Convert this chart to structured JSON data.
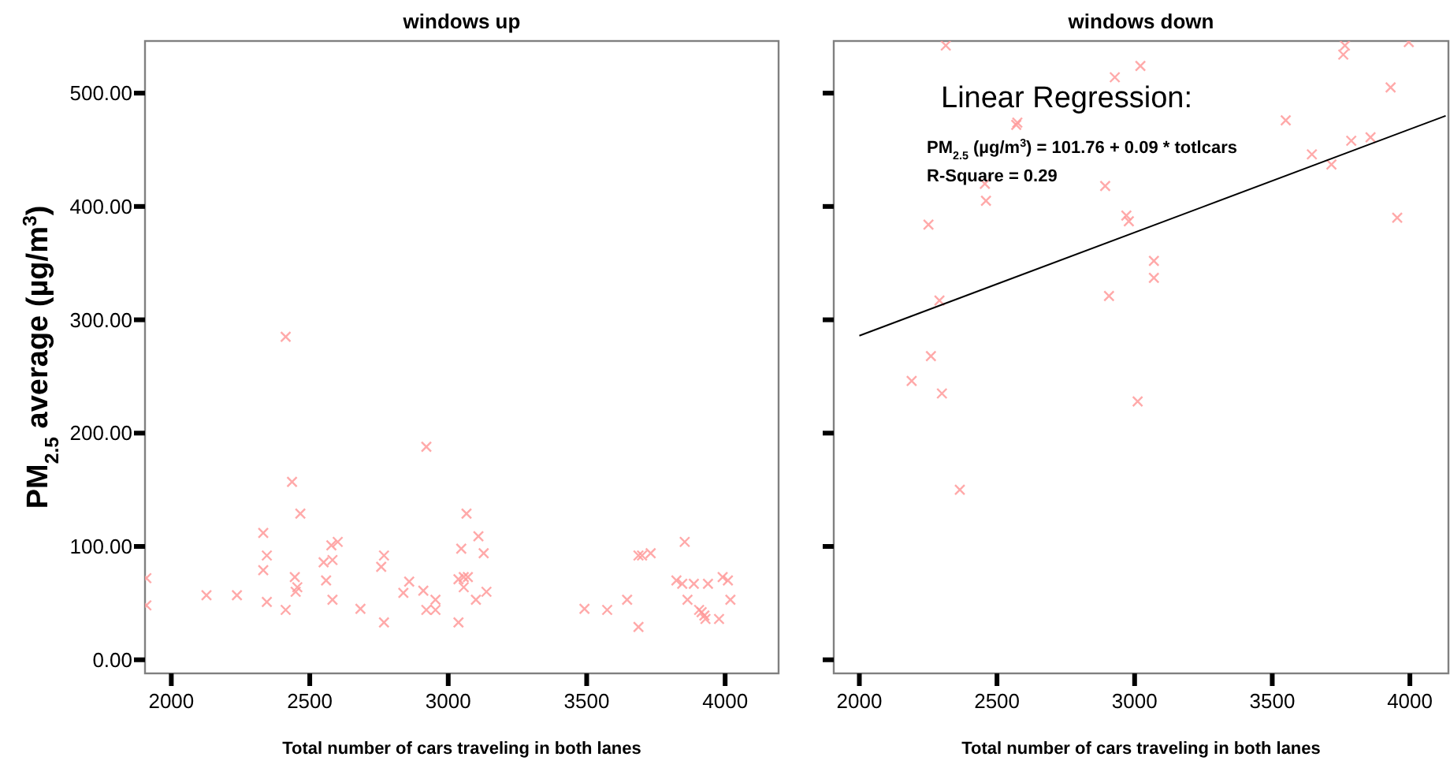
{
  "chart_data": [
    {
      "type": "scatter",
      "title": "windows up",
      "xlabel": "Total number of cars traveling in both lanes",
      "ylabel": "PM$_{2.5}$ average (µg/m$^{3}$)",
      "xlim": [
        1905,
        4193
      ],
      "ylim": [
        -12,
        546
      ],
      "xticks": [
        2000,
        2500,
        3000,
        3500,
        4000
      ],
      "yticks": [
        {
          "value": 0,
          "label": "0.00"
        },
        {
          "value": 100,
          "label": "100.00"
        },
        {
          "value": 200,
          "label": "200.00"
        },
        {
          "value": 300,
          "label": "300.00"
        },
        {
          "value": 400,
          "label": "400.00"
        },
        {
          "value": 500,
          "label": "500.00"
        }
      ],
      "grid": false,
      "marker": "cross",
      "series": [
        {
          "color": "#ff9a9a",
          "x": [
            1910,
            1910,
            2127,
            2237,
            2332,
            2332,
            2345,
            2345,
            2413,
            2413,
            2436,
            2446,
            2449,
            2455,
            2466,
            2550,
            2559,
            2578,
            2582,
            2582,
            2601,
            2683,
            2758,
            2768,
            2768,
            2838,
            2859,
            2910,
            2921,
            2921,
            2954,
            2954,
            3037,
            3037,
            3047,
            3056,
            3056,
            3066,
            3071,
            3100,
            3109,
            3128,
            3138,
            3492,
            3574,
            3646,
            3687,
            3687,
            3700,
            3731,
            3824,
            3845,
            3854,
            3864,
            3887,
            3906,
            3915,
            3925,
            3929,
            3938,
            3978,
            3991,
            4010,
            4019
          ],
          "values": [
            72,
            48,
            57,
            57,
            112,
            79,
            92,
            51,
            285,
            44,
            157,
            73,
            60,
            64,
            129,
            86,
            70,
            101,
            88,
            53,
            104,
            45,
            82,
            92,
            33,
            59,
            69,
            61,
            188,
            44,
            53,
            44,
            33,
            71,
            98,
            73,
            64,
            129,
            73,
            53,
            109,
            94,
            60,
            45,
            44,
            53,
            29,
            92,
            92,
            94,
            70,
            67,
            104,
            53,
            67,
            44,
            42,
            39,
            36,
            67,
            36,
            73,
            70,
            53
          ]
        }
      ]
    },
    {
      "type": "scatter",
      "title": "windows down",
      "xlabel": "Total number of cars traveling in both lanes",
      "xlim": [
        1907,
        4140
      ],
      "ylim": [
        -12,
        546
      ],
      "xticks": [
        2000,
        2500,
        3000,
        3500,
        4000
      ],
      "yticks": [
        {
          "value": 0,
          "label": null
        },
        {
          "value": 100,
          "label": null
        },
        {
          "value": 200,
          "label": null
        },
        {
          "value": 300,
          "label": null
        },
        {
          "value": 400,
          "label": null
        },
        {
          "value": 500,
          "label": null
        }
      ],
      "tick_labels": "x",
      "grid": false,
      "marker": "cross",
      "annotations": [
        "Linear Regression:",
        "PM$_{2.5}$ (µg/m$^{3}$) = 101.76 + 0.09 * totlcars",
        "R-Square = 0.29"
      ],
      "series": [
        {
          "color": "#ff9a9a",
          "x": [
            2314,
            2570,
            2574,
            2928,
            3021,
            3764,
            3758,
            3996,
            3930,
            3549,
            3644,
            3787,
            3857,
            3715,
            2456,
            2460,
            2251,
            2893,
            2970,
            2979,
            3954,
            3070,
            3070,
            2907,
            2291,
            2260,
            2190,
            2300,
            3011,
            2365
          ],
          "values": [
            542,
            472,
            474,
            514,
            524,
            542,
            534,
            545,
            505,
            476,
            446,
            458,
            461,
            437,
            420,
            405,
            384,
            418,
            392,
            387,
            390,
            352,
            337,
            321,
            317,
            268,
            246,
            235,
            228,
            150
          ]
        },
        {
          "type": "line",
          "color": "#000000",
          "marker": "none",
          "x": [
            2000,
            4130
          ],
          "values": [
            286,
            480
          ]
        }
      ]
    }
  ]
}
